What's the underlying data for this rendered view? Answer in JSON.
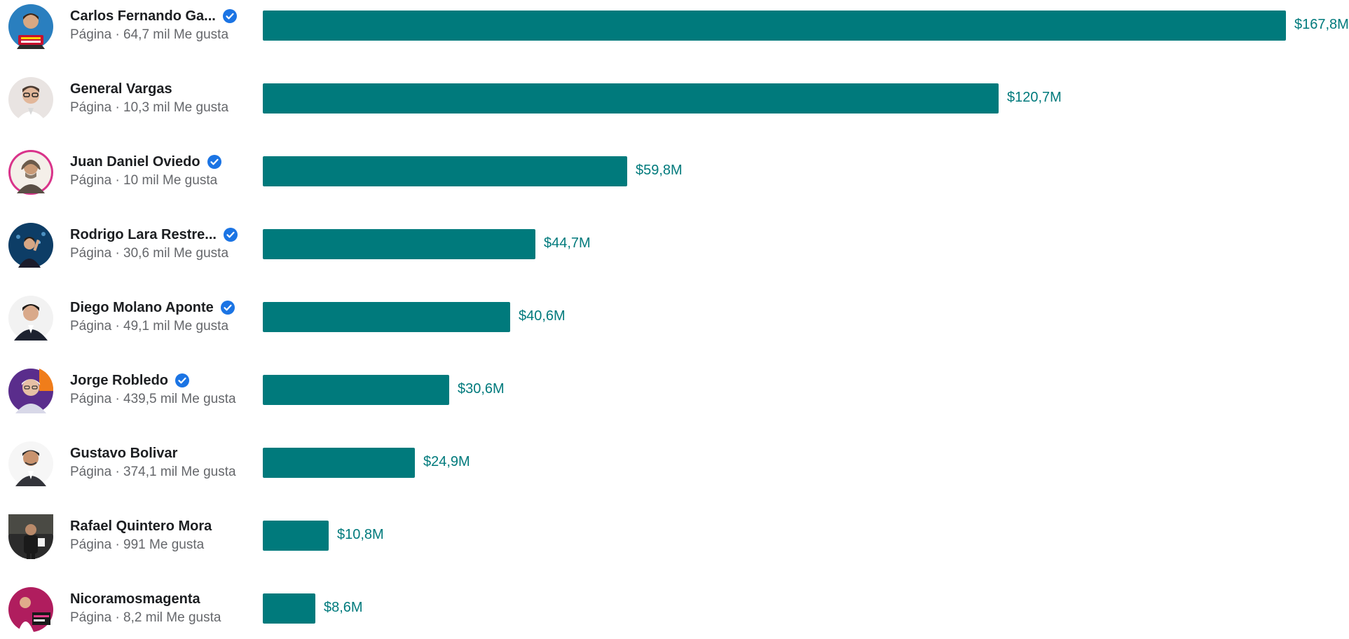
{
  "chart_data": {
    "type": "bar",
    "orientation": "horizontal",
    "bar_color": "#007a7c",
    "categories": [
      "Carlos Fernando Ga...",
      "General Vargas",
      "Juan Daniel Oviedo",
      "Rodrigo Lara Restre...",
      "Diego Molano Aponte",
      "Jorge Robledo",
      "Gustavo Bolivar",
      "Rafael Quintero Mora",
      "Nicoramosmagenta"
    ],
    "values": [
      167.8,
      120.7,
      59.8,
      44.7,
      40.6,
      30.6,
      24.9,
      10.8,
      8.6
    ],
    "value_labels": [
      "$167,8M",
      "$120,7M",
      "$59,8M",
      "$44,7M",
      "$40,6M",
      "$30,6M",
      "$24,9M",
      "$10,8M",
      "$8,6M"
    ],
    "xlim": [
      0,
      167.8
    ],
    "grid": false
  },
  "rows": [
    {
      "name": "Carlos Fernando Ga...",
      "meta": "Página · 64,7 mil Me gusta",
      "verified": true,
      "avatar": "avatar-red-banner"
    },
    {
      "name": "General Vargas",
      "meta": "Página · 10,3 mil Me gusta",
      "verified": false,
      "avatar": "avatar-light-glasses"
    },
    {
      "name": "Juan Daniel Oviedo",
      "meta": "Página · 10 mil Me gusta",
      "verified": true,
      "avatar": "avatar-pink-ring"
    },
    {
      "name": "Rodrigo Lara Restre...",
      "meta": "Página · 30,6 mil Me gusta",
      "verified": true,
      "avatar": "avatar-blue-crowd"
    },
    {
      "name": "Diego Molano Aponte",
      "meta": "Página · 49,1 mil Me gusta",
      "verified": true,
      "avatar": "avatar-dark-suit"
    },
    {
      "name": "Jorge Robledo",
      "meta": "Página · 439,5 mil Me gusta",
      "verified": true,
      "avatar": "avatar-purple-orange"
    },
    {
      "name": "Gustavo Bolivar",
      "meta": "Página · 374,1 mil Me gusta",
      "verified": false,
      "avatar": "avatar-white-portrait"
    },
    {
      "name": "Rafael Quintero Mora",
      "meta": "Página · 991 Me gusta",
      "verified": false,
      "avatar": "avatar-dark-standing"
    },
    {
      "name": "Nicoramosmagenta",
      "meta": "Página · 8,2 mil Me gusta",
      "verified": false,
      "avatar": "avatar-magenta"
    }
  ],
  "colors": {
    "verified_badge": "#1b74e4",
    "name_text": "#1c1e21",
    "meta_text": "#65676b"
  }
}
